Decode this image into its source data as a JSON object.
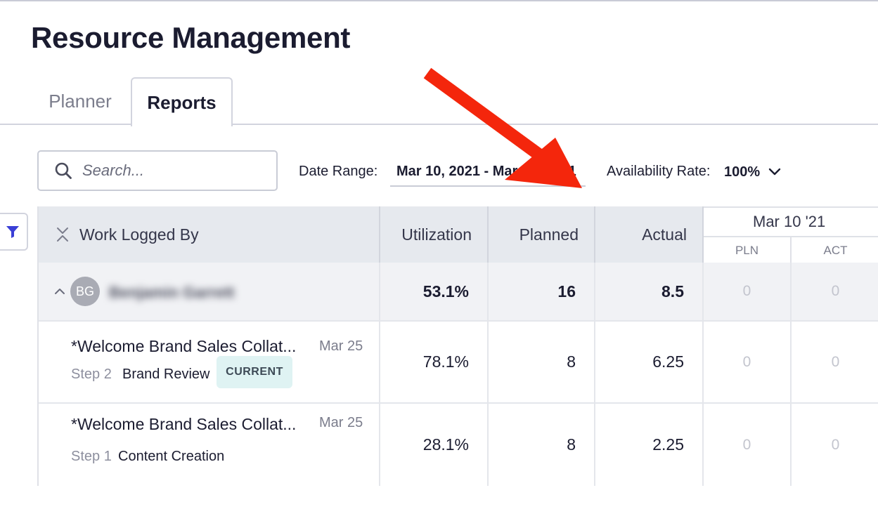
{
  "app": {
    "title": "Resource Management"
  },
  "tabs": [
    {
      "label": "Planner",
      "active": false
    },
    {
      "label": "Reports",
      "active": true
    }
  ],
  "search": {
    "placeholder": "Search...",
    "value": ""
  },
  "filters": {
    "date_range_label": "Date Range:",
    "date_range_value": "Mar 10, 2021 - Mar 24, 2021",
    "availability_label": "Availability Rate:",
    "availability_value": "100%"
  },
  "table": {
    "headers": {
      "work": "Work Logged By",
      "utilization": "Utilization",
      "planned": "Planned",
      "actual": "Actual",
      "date_group": "Mar 10 '21",
      "pln": "PLN",
      "act": "ACT"
    },
    "group": {
      "initials": "BG",
      "name": "Benjamin Garrett",
      "utilization": "53.1%",
      "planned": "16",
      "actual": "8.5",
      "day_pln": "0",
      "day_act": "0"
    },
    "tasks": [
      {
        "title": "*Welcome Brand Sales Collat...",
        "date": "Mar 25",
        "step": "Step 2",
        "step_name": "Brand Review",
        "badge": "CURRENT",
        "utilization": "78.1%",
        "planned": "8",
        "actual": "6.25",
        "day_pln": "0",
        "day_act": "0"
      },
      {
        "title": "*Welcome Brand Sales Collat...",
        "date": "Mar 25",
        "step": "Step 1",
        "step_name": "Content Creation",
        "utilization": "28.1%",
        "planned": "8",
        "actual": "2.25",
        "day_pln": "0",
        "day_act": "0"
      }
    ]
  },
  "icons": {
    "search": "search-icon",
    "filter": "filter-icon",
    "collapse": "collapse-all-icon",
    "chevron": "chevron-down-icon"
  },
  "colors": {
    "accent": "#3a3fd6",
    "annotation_arrow": "#f4260c",
    "badge_bg": "#dff3f3",
    "header_bg": "#e6e9ee"
  }
}
